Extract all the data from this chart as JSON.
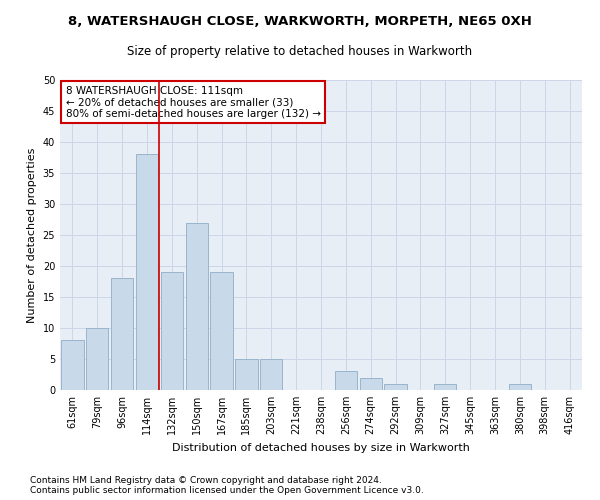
{
  "title1": "8, WATERSHAUGH CLOSE, WARKWORTH, MORPETH, NE65 0XH",
  "title2": "Size of property relative to detached houses in Warkworth",
  "xlabel": "Distribution of detached houses by size in Warkworth",
  "ylabel": "Number of detached properties",
  "categories": [
    "61sqm",
    "79sqm",
    "96sqm",
    "114sqm",
    "132sqm",
    "150sqm",
    "167sqm",
    "185sqm",
    "203sqm",
    "221sqm",
    "238sqm",
    "256sqm",
    "274sqm",
    "292sqm",
    "309sqm",
    "327sqm",
    "345sqm",
    "363sqm",
    "380sqm",
    "398sqm",
    "416sqm"
  ],
  "values": [
    8,
    10,
    18,
    38,
    19,
    27,
    19,
    5,
    5,
    0,
    0,
    3,
    2,
    1,
    0,
    1,
    0,
    0,
    1,
    0,
    0
  ],
  "bar_color": "#c8d9ea",
  "bar_edge_color": "#9ab4cc",
  "vline_x": 3.5,
  "vline_color": "#cc0000",
  "annotation_text": "8 WATERSHAUGH CLOSE: 111sqm\n← 20% of detached houses are smaller (33)\n80% of semi-detached houses are larger (132) →",
  "annotation_box_color": "#ffffff",
  "annotation_box_edge": "#cc0000",
  "ylim": [
    0,
    50
  ],
  "yticks": [
    0,
    5,
    10,
    15,
    20,
    25,
    30,
    35,
    40,
    45,
    50
  ],
  "grid_color": "#cdd6e8",
  "bg_color": "#e8eef6",
  "footer1": "Contains HM Land Registry data © Crown copyright and database right 2024.",
  "footer2": "Contains public sector information licensed under the Open Government Licence v3.0.",
  "title1_fontsize": 9.5,
  "title2_fontsize": 8.5,
  "xlabel_fontsize": 8,
  "ylabel_fontsize": 8,
  "tick_fontsize": 7,
  "annotation_fontsize": 7.5,
  "footer_fontsize": 6.5
}
